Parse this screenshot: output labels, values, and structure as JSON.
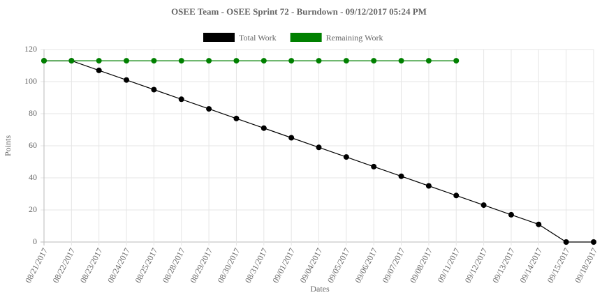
{
  "chart_data": {
    "type": "line",
    "title": "OSEE Team - OSEE Sprint 72 - Burndown - 09/12/2017 05:24 PM",
    "xlabel": "Dates",
    "ylabel": "Points",
    "categories": [
      "08/21/2017",
      "08/22/2017",
      "08/23/2017",
      "08/24/2017",
      "08/25/2017",
      "08/28/2017",
      "08/29/2017",
      "08/30/2017",
      "08/31/2017",
      "09/01/2017",
      "09/04/2017",
      "09/05/2017",
      "09/06/2017",
      "09/07/2017",
      "09/08/2017",
      "09/11/2017",
      "09/12/2017",
      "09/13/2017",
      "09/14/2017",
      "09/15/2017",
      "09/18/2017"
    ],
    "series": [
      {
        "name": "Total Work",
        "color": "#000000",
        "values": [
          113,
          113,
          107,
          101,
          95,
          89,
          83,
          77,
          71,
          65,
          59,
          53,
          47,
          41,
          35,
          29,
          23,
          17,
          11,
          0,
          0
        ]
      },
      {
        "name": "Remaining Work",
        "color": "#008000",
        "values": [
          113,
          113,
          113,
          113,
          113,
          113,
          113,
          113,
          113,
          113,
          113,
          113,
          113,
          113,
          113,
          113,
          null,
          null,
          null,
          null,
          null
        ]
      }
    ],
    "ylim": [
      0,
      120
    ],
    "yticks": [
      0,
      20,
      40,
      60,
      80,
      100,
      120
    ],
    "grid": true,
    "legend": "top"
  }
}
